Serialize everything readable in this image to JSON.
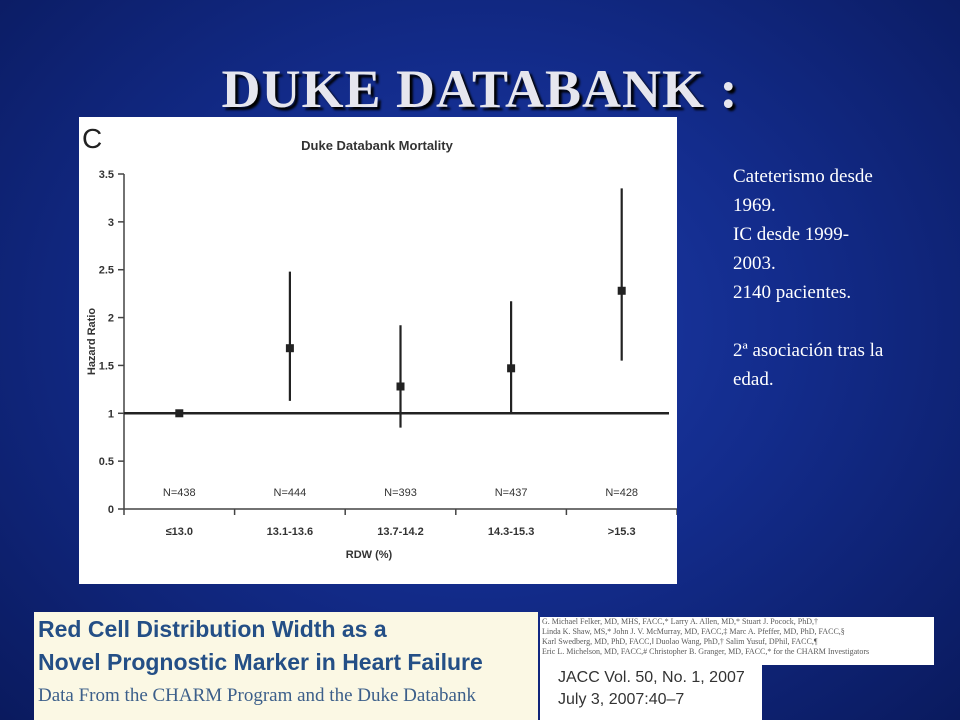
{
  "slide": {
    "title": "DUKE DATABANK :"
  },
  "notes": {
    "lines": [
      "Cateterismo desde",
      "1969.",
      "IC desde 1999-",
      "2003.",
      "2140 pacientes."
    ],
    "lines2": [
      "2ª asociación tras la",
      "edad."
    ]
  },
  "paper": {
    "title_line1": "Red Cell Distribution Width as a",
    "title_line2": "Novel Prognostic Marker in Heart Failure",
    "subtitle": "Data From the CHARM Program and the Duke Databank",
    "authors": [
      "G. Michael Felker, MD, MHS, FACC,* Larry A. Allen, MD,* Stuart J. Pocock, PhD,†",
      "Linda K. Shaw, MS,* John J. V. McMurray, MD, FACC,‡ Marc A. Pfeffer, MD, PhD, FACC,§",
      "Karl Swedberg, MD, PhD, FACC,‖ Duolao Wang, PhD,† Salim Yusuf, DPhil, FACC,¶",
      "Eric L. Michelson, MD, FACC,# Christopher B. Granger, MD, FACC,* for the CHARM Investigators"
    ],
    "journal_line1": "JACC Vol. 50, No. 1, 2007",
    "journal_line2": "July 3, 2007:40–7"
  },
  "chart_data": {
    "type": "scatter",
    "panel_letter": "C",
    "title": "Duke Databank Mortality",
    "xlabel": "RDW (%)",
    "ylabel": "Hazard Ratio",
    "categories": [
      "≤13.0",
      "13.1-13.6",
      "13.7-14.2",
      "14.3-15.3",
      ">15.3"
    ],
    "n_labels": [
      "N=438",
      "N=444",
      "N=393",
      "N=437",
      "N=428"
    ],
    "values": [
      1.0,
      1.68,
      1.28,
      1.47,
      2.28
    ],
    "ci_low": [
      null,
      1.13,
      0.85,
      1.0,
      1.55
    ],
    "ci_high": [
      null,
      2.48,
      1.92,
      2.17,
      3.35
    ],
    "reference_line": 1.0,
    "ylim": [
      0,
      3.5
    ],
    "yticks": [
      "0",
      "0.5",
      "1",
      "1.5",
      "2",
      "2.5",
      "3",
      "3.5"
    ],
    "grid": false
  }
}
